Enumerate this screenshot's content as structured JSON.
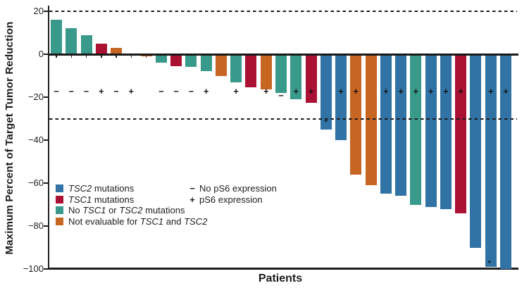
{
  "chart_data": {
    "type": "bar",
    "subtype": "waterfall",
    "title": "",
    "xlabel": "Patients",
    "ylabel": "Maximum Percent of Target Tumor Reduction",
    "ylim": [
      -100,
      25
    ],
    "grid": false,
    "legend_position": "lower-left",
    "yticks": [
      {
        "label": "20",
        "value": 20
      },
      {
        "label": "0",
        "value": 0
      },
      {
        "label": "−20",
        "value": -20
      },
      {
        "label": "−40",
        "value": -40
      },
      {
        "label": "−60",
        "value": -60
      },
      {
        "label": "−80",
        "value": -80
      },
      {
        "label": "−100",
        "value": -100
      }
    ],
    "dashed_reference_lines": [
      20,
      -30
    ],
    "ps6_marker_row_value": -17.5,
    "colors": {
      "tsc2": "#3173a4",
      "tsc1": "#aa1132",
      "no_mut": "#399a8b",
      "not_eval": "#c76522",
      "axis": "#1f1f1f"
    },
    "legend": [
      {
        "group": "tsc2",
        "parts": [
          {
            "t": "TSC2",
            "i": true
          },
          {
            "t": " mutations"
          }
        ]
      },
      {
        "group": "tsc1",
        "parts": [
          {
            "t": "TSC1",
            "i": true
          },
          {
            "t": " mutations"
          }
        ]
      },
      {
        "group": "no_mut",
        "parts": [
          {
            "t": "No "
          },
          {
            "t": "TSC1",
            "i": true
          },
          {
            "t": " or "
          },
          {
            "t": "TSC2",
            "i": true
          },
          {
            "t": " mutations"
          }
        ]
      },
      {
        "group": "not_eval",
        "parts": [
          {
            "t": "Not evaluable for "
          },
          {
            "t": "TSC1",
            "i": true
          },
          {
            "t": " and "
          },
          {
            "t": "TSC2",
            "i": true
          }
        ]
      }
    ],
    "ps6_legend": [
      {
        "symbol": "−",
        "label": "No pS6 expression"
      },
      {
        "symbol": "+",
        "label": "pS6 expression"
      }
    ],
    "patients": [
      {
        "value": 16,
        "group": "no_mut",
        "ps6": "−"
      },
      {
        "value": 12,
        "group": "no_mut",
        "ps6": "−"
      },
      {
        "value": 9,
        "group": "no_mut",
        "ps6": "−"
      },
      {
        "value": 5,
        "group": "tsc1",
        "ps6": "+"
      },
      {
        "value": 3,
        "group": "not_eval",
        "ps6": "−"
      },
      {
        "value": 0,
        "group": null,
        "ps6": "+"
      },
      {
        "value": -1,
        "group": "not_eval",
        "ps6": null
      },
      {
        "value": -4,
        "group": "no_mut",
        "ps6": "−"
      },
      {
        "value": -5.5,
        "group": "tsc1",
        "ps6": "−"
      },
      {
        "value": -6,
        "group": "no_mut",
        "ps6": "−"
      },
      {
        "value": -8,
        "group": "no_mut",
        "ps6": "+"
      },
      {
        "value": -10,
        "group": "not_eval",
        "ps6": null
      },
      {
        "value": -13,
        "group": "no_mut",
        "ps6": "+"
      },
      {
        "value": -15.5,
        "group": "tsc1",
        "ps6": null
      },
      {
        "value": -16.5,
        "group": "not_eval",
        "ps6": "+"
      },
      {
        "value": -18,
        "group": "no_mut",
        "ps6": "−",
        "sign_at": -19.5
      },
      {
        "value": -21,
        "group": "no_mut",
        "ps6": "+"
      },
      {
        "value": -22.5,
        "group": "tsc1",
        "ps6": "+"
      },
      {
        "value": -35,
        "group": "tsc2",
        "ps6": "+",
        "sign_at": -31.5
      },
      {
        "value": -40,
        "group": "tsc2",
        "ps6": "+"
      },
      {
        "value": -56,
        "group": "not_eval",
        "ps6": "+"
      },
      {
        "value": -61,
        "group": "not_eval",
        "ps6": null
      },
      {
        "value": -65,
        "group": "tsc2",
        "ps6": "+"
      },
      {
        "value": -66,
        "group": "tsc2",
        "ps6": "+"
      },
      {
        "value": -70,
        "group": "no_mut",
        "ps6": "+"
      },
      {
        "value": -71,
        "group": "tsc2",
        "ps6": "+"
      },
      {
        "value": -72,
        "group": "tsc2",
        "ps6": "+"
      },
      {
        "value": -74,
        "group": "tsc1",
        "ps6": "+"
      },
      {
        "value": -90,
        "group": "tsc2",
        "ps6": null
      },
      {
        "value": -99,
        "group": "tsc2",
        "ps6": "+",
        "star": true
      },
      {
        "value": -100,
        "group": "tsc2",
        "ps6": "+"
      }
    ],
    "footnote_marker": "*"
  }
}
